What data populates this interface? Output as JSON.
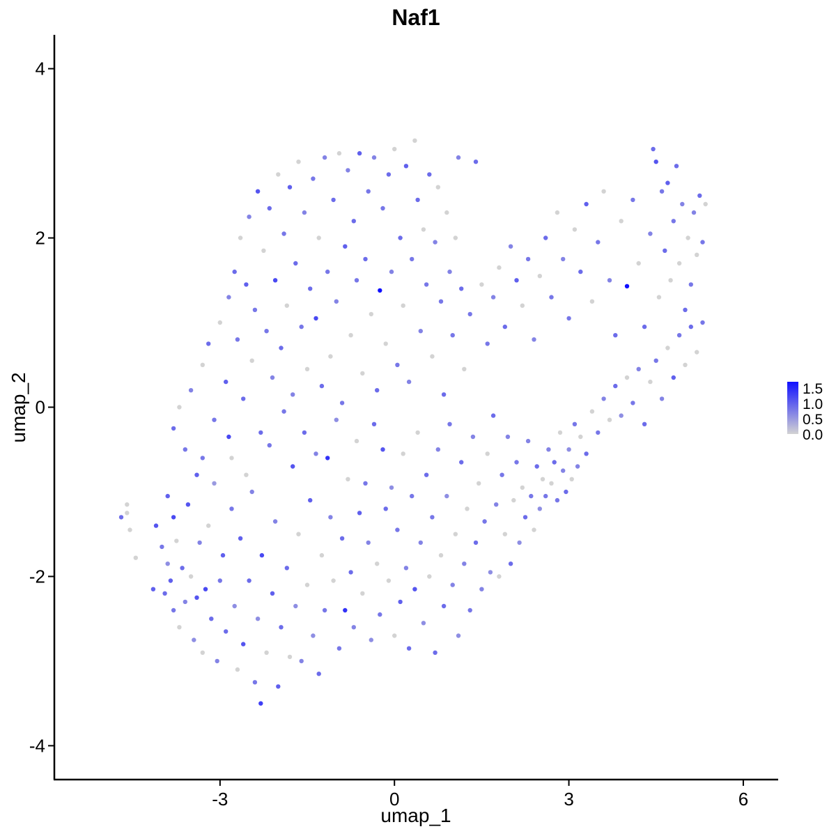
{
  "chart_data": {
    "type": "scatter",
    "title": "Naf1",
    "xlabel": "umap_1",
    "ylabel": "umap_2",
    "xlim": [
      -5.85,
      6.6
    ],
    "ylim": [
      -4.4,
      4.4
    ],
    "x_ticks": [
      "-3",
      "0",
      "3",
      "6"
    ],
    "x_tick_values": [
      -3,
      0,
      3,
      6
    ],
    "y_ticks": [
      "-4",
      "-2",
      "0",
      "2",
      "4"
    ],
    "y_tick_values": [
      -4,
      -2,
      0,
      2,
      4
    ],
    "grid": false,
    "legend": {
      "placement": "right",
      "labels": [
        "1.5",
        "1.0",
        "0.5",
        "0.0"
      ],
      "values": [
        1.5,
        1.0,
        0.5,
        0.0
      ],
      "range": [
        0,
        1.7
      ]
    },
    "color_scale": {
      "low": "#d3d3d3",
      "high": "#1010ff"
    },
    "points": [
      [
        -4.7,
        -1.3,
        0.9
      ],
      [
        -4.6,
        -1.25,
        0
      ],
      [
        -4.6,
        -1.15,
        0
      ],
      [
        -4.55,
        -1.45,
        0
      ],
      [
        -4.45,
        -1.78,
        0
      ],
      [
        -4.15,
        -2.15,
        1.0
      ],
      [
        -4.1,
        -1.4,
        1.1
      ],
      [
        -4.0,
        -1.65,
        0.8
      ],
      [
        -3.95,
        -2.2,
        0.9
      ],
      [
        -3.9,
        -1.85,
        0.6
      ],
      [
        -3.85,
        -2.05,
        1.0
      ],
      [
        -3.8,
        -2.4,
        0.8
      ],
      [
        -3.8,
        -1.3,
        1.2
      ],
      [
        -3.75,
        -1.58,
        0
      ],
      [
        -3.7,
        -2.6,
        0
      ],
      [
        -3.65,
        -1.9,
        0.9
      ],
      [
        -3.6,
        -2.3,
        0.7
      ],
      [
        -3.55,
        -1.15,
        1.1
      ],
      [
        -3.5,
        -2.0,
        0
      ],
      [
        -3.45,
        -2.75,
        0.6
      ],
      [
        -3.4,
        -2.25,
        1.1
      ],
      [
        -3.35,
        -1.6,
        0.7
      ],
      [
        -3.3,
        -2.9,
        0
      ],
      [
        -3.3,
        -0.6,
        0.8
      ],
      [
        -3.25,
        -2.15,
        1.2
      ],
      [
        -3.2,
        -1.4,
        0
      ],
      [
        -3.15,
        -2.5,
        0.9
      ],
      [
        -3.1,
        -0.9,
        0.5
      ],
      [
        -3.05,
        -3.0,
        0.7
      ],
      [
        -3.0,
        -2.05,
        0.8
      ],
      [
        -2.95,
        -1.75,
        1.0
      ],
      [
        -2.9,
        -2.65,
        0.9
      ],
      [
        -2.85,
        -0.35,
        1.2
      ],
      [
        -2.8,
        -1.2,
        0.8
      ],
      [
        -2.75,
        -2.35,
        0.6
      ],
      [
        -2.7,
        -3.1,
        0
      ],
      [
        -2.65,
        -1.55,
        1.0
      ],
      [
        -2.6,
        -2.8,
        1.1
      ],
      [
        -2.55,
        -0.8,
        0
      ],
      [
        -2.5,
        -2.05,
        0.9
      ],
      [
        -2.45,
        -1.0,
        0.7
      ],
      [
        -2.4,
        -3.25,
        0.8
      ],
      [
        -2.35,
        -2.5,
        0.6
      ],
      [
        -2.3,
        -3.5,
        1.3
      ],
      [
        -2.28,
        -1.75,
        1.2
      ],
      [
        -2.2,
        -2.9,
        0
      ],
      [
        -2.15,
        -0.45,
        0.8
      ],
      [
        -2.1,
        -2.2,
        1.0
      ],
      [
        -2.05,
        -1.35,
        0.7
      ],
      [
        -2.0,
        -3.3,
        1.0
      ],
      [
        -1.95,
        -2.6,
        0.9
      ],
      [
        -1.9,
        -0.05,
        0.8
      ],
      [
        -1.85,
        -1.9,
        0.9
      ],
      [
        -1.8,
        -2.95,
        0
      ],
      [
        -1.75,
        -0.7,
        1.1
      ],
      [
        -1.7,
        -2.35,
        0.6
      ],
      [
        -1.65,
        -1.5,
        0
      ],
      [
        -1.6,
        -3.0,
        0.7
      ],
      [
        -1.55,
        -0.3,
        0.9
      ],
      [
        -1.5,
        -2.1,
        0
      ],
      [
        -1.45,
        -1.1,
        1.0
      ],
      [
        -1.4,
        -2.7,
        0.6
      ],
      [
        -1.35,
        -0.55,
        0.7
      ],
      [
        -1.3,
        -3.15,
        0.9
      ],
      [
        -1.25,
        -1.75,
        0
      ],
      [
        -1.2,
        -2.4,
        0.8
      ],
      [
        -1.15,
        -0.6,
        1.4
      ],
      [
        -1.1,
        -1.3,
        0.7
      ],
      [
        -1.05,
        -2.05,
        0
      ],
      [
        -1.0,
        -0.15,
        0.6
      ],
      [
        -0.95,
        -2.85,
        0.8
      ],
      [
        -0.9,
        -1.55,
        0.9
      ],
      [
        -0.85,
        -2.4,
        1.4
      ],
      [
        -0.8,
        -0.85,
        0
      ],
      [
        -0.75,
        -1.95,
        0.9
      ],
      [
        -0.7,
        -2.6,
        0.7
      ],
      [
        -0.65,
        -0.4,
        0
      ],
      [
        -0.6,
        -1.25,
        1.0
      ],
      [
        -0.55,
        -2.2,
        0
      ],
      [
        -0.5,
        -0.9,
        0.8
      ],
      [
        -0.45,
        -1.6,
        0.7
      ],
      [
        -0.4,
        -2.75,
        0.6
      ],
      [
        -0.35,
        -0.2,
        0.9
      ],
      [
        -0.3,
        -1.85,
        0
      ],
      [
        -0.25,
        -2.45,
        0.8
      ],
      [
        -0.2,
        -0.5,
        1.1
      ],
      [
        -0.15,
        -1.2,
        0.9
      ],
      [
        -0.1,
        -2.05,
        0
      ],
      [
        -0.05,
        -0.95,
        0.6
      ],
      [
        0.0,
        -2.7,
        0
      ],
      [
        0.05,
        -1.45,
        0.8
      ],
      [
        0.1,
        -2.3,
        1.0
      ],
      [
        0.15,
        -0.55,
        0
      ],
      [
        0.2,
        -1.9,
        0.7
      ],
      [
        0.25,
        -2.85,
        0.9
      ],
      [
        0.3,
        -1.05,
        0.8
      ],
      [
        0.35,
        -2.15,
        1.1
      ],
      [
        0.4,
        -0.3,
        0
      ],
      [
        0.45,
        -1.6,
        0.7
      ],
      [
        0.5,
        -2.55,
        0.6
      ],
      [
        0.55,
        -0.8,
        0.9
      ],
      [
        0.6,
        -2.0,
        0
      ],
      [
        0.65,
        -1.3,
        0.8
      ],
      [
        0.7,
        -2.9,
        0.9
      ],
      [
        0.75,
        -0.5,
        0.7
      ],
      [
        0.8,
        -1.75,
        0
      ],
      [
        0.85,
        -2.35,
        0.9
      ],
      [
        0.9,
        -1.05,
        0.6
      ],
      [
        0.95,
        -0.2,
        0.8
      ],
      [
        1.0,
        -2.1,
        0.7
      ],
      [
        1.05,
        -1.5,
        0
      ],
      [
        1.1,
        -2.7,
        0.6
      ],
      [
        1.15,
        -0.65,
        0.9
      ],
      [
        1.2,
        -1.85,
        0.7
      ],
      [
        1.25,
        -1.2,
        0
      ],
      [
        1.3,
        -2.4,
        0.8
      ],
      [
        1.35,
        -0.35,
        0.7
      ],
      [
        1.4,
        -1.6,
        0.9
      ],
      [
        1.45,
        -0.9,
        0
      ],
      [
        1.5,
        -2.15,
        0.7
      ],
      [
        1.55,
        -1.35,
        0.8
      ],
      [
        1.6,
        -0.55,
        0
      ],
      [
        1.65,
        -1.95,
        0.6
      ],
      [
        1.7,
        -0.1,
        0.9
      ],
      [
        1.75,
        -1.15,
        0.7
      ],
      [
        1.8,
        -2.0,
        0
      ],
      [
        1.85,
        -0.8,
        0.8
      ],
      [
        1.9,
        -1.5,
        0
      ],
      [
        1.95,
        -0.35,
        0.7
      ],
      [
        2.0,
        -1.85,
        0.9
      ],
      [
        2.05,
        -1.1,
        0
      ],
      [
        2.1,
        -0.65,
        0.8
      ],
      [
        2.15,
        -1.6,
        0.6
      ],
      [
        2.2,
        -0.95,
        0
      ],
      [
        2.25,
        -1.3,
        0.9
      ],
      [
        2.3,
        -0.4,
        0.7
      ],
      [
        2.35,
        -1.05,
        0.8
      ],
      [
        2.4,
        -1.45,
        0
      ],
      [
        2.45,
        -0.7,
        0.9
      ],
      [
        2.5,
        -1.2,
        0.6
      ],
      [
        2.55,
        -0.85,
        0
      ],
      [
        2.6,
        -1.05,
        0.8
      ],
      [
        2.65,
        -0.5,
        0.7
      ],
      [
        2.7,
        -0.9,
        0
      ],
      [
        2.75,
        -0.65,
        0.9
      ],
      [
        2.8,
        -1.1,
        0.8
      ],
      [
        2.85,
        -0.3,
        0
      ],
      [
        2.9,
        -0.75,
        0.7
      ],
      [
        2.95,
        -1.0,
        0.9
      ],
      [
        3.0,
        -0.5,
        0.6
      ],
      [
        3.05,
        -0.85,
        0
      ],
      [
        3.1,
        -0.2,
        0.8
      ],
      [
        3.15,
        -0.7,
        0.7
      ],
      [
        3.2,
        -0.35,
        0
      ],
      [
        3.3,
        -0.55,
        0.9
      ],
      [
        3.4,
        -0.05,
        0
      ],
      [
        3.5,
        -0.3,
        0.8
      ],
      [
        3.6,
        0.1,
        0.7
      ],
      [
        3.7,
        -0.15,
        0
      ],
      [
        3.8,
        0.25,
        0.9
      ],
      [
        3.9,
        -0.1,
        0.6
      ],
      [
        4.0,
        0.35,
        0
      ],
      [
        4.1,
        0.05,
        0.8
      ],
      [
        4.2,
        0.45,
        0.7
      ],
      [
        4.3,
        -0.2,
        0.9
      ],
      [
        4.4,
        0.3,
        0
      ],
      [
        4.5,
        0.55,
        0.8
      ],
      [
        4.6,
        0.1,
        0.7
      ],
      [
        4.7,
        0.7,
        0
      ],
      [
        4.8,
        0.35,
        1.0
      ],
      [
        4.9,
        0.85,
        0.8
      ],
      [
        5.0,
        0.5,
        0
      ],
      [
        5.1,
        0.95,
        0.9
      ],
      [
        5.2,
        0.65,
        0
      ],
      [
        5.3,
        1.0,
        0.8
      ],
      [
        -3.9,
        -1.05,
        1.0
      ],
      [
        -3.8,
        -0.25,
        0.9
      ],
      [
        -3.7,
        0.0,
        0
      ],
      [
        -3.6,
        -0.5,
        0.8
      ],
      [
        -3.5,
        0.2,
        0.7
      ],
      [
        -3.4,
        -0.8,
        1.0
      ],
      [
        -3.3,
        0.5,
        0
      ],
      [
        -3.2,
        0.75,
        0.9
      ],
      [
        -3.1,
        -0.15,
        0.8
      ],
      [
        -3.0,
        1.0,
        0
      ],
      [
        -2.9,
        0.3,
        1.0
      ],
      [
        -2.85,
        1.3,
        0.7
      ],
      [
        -2.8,
        -0.6,
        0
      ],
      [
        -2.75,
        1.6,
        0.9
      ],
      [
        -2.7,
        0.8,
        0.8
      ],
      [
        -2.65,
        2.0,
        0
      ],
      [
        -2.6,
        0.1,
        0.9
      ],
      [
        -2.55,
        1.45,
        1.0
      ],
      [
        -2.5,
        2.25,
        0.7
      ],
      [
        -2.45,
        0.55,
        0
      ],
      [
        -2.4,
        1.15,
        0.8
      ],
      [
        -2.35,
        2.55,
        1.1
      ],
      [
        -2.3,
        -0.3,
        0.9
      ],
      [
        -2.25,
        1.85,
        0
      ],
      [
        -2.2,
        0.9,
        0.8
      ],
      [
        -2.15,
        2.35,
        0.9
      ],
      [
        -2.1,
        0.35,
        0.7
      ],
      [
        -2.05,
        1.5,
        1.2
      ],
      [
        -2.0,
        2.75,
        0
      ],
      [
        -1.95,
        0.7,
        0.9
      ],
      [
        -1.9,
        2.05,
        0.8
      ],
      [
        -1.85,
        1.2,
        0
      ],
      [
        -1.8,
        2.6,
        1.0
      ],
      [
        -1.75,
        0.15,
        0.7
      ],
      [
        -1.7,
        1.7,
        0.9
      ],
      [
        -1.65,
        2.9,
        0
      ],
      [
        -1.6,
        0.95,
        0.8
      ],
      [
        -1.55,
        2.3,
        0.7
      ],
      [
        -1.5,
        0.45,
        0
      ],
      [
        -1.45,
        1.4,
        0.9
      ],
      [
        -1.4,
        2.7,
        0.8
      ],
      [
        -1.35,
        1.05,
        1.2
      ],
      [
        -1.3,
        2.0,
        0
      ],
      [
        -1.25,
        0.25,
        0.9
      ],
      [
        -1.2,
        2.95,
        0.7
      ],
      [
        -1.15,
        1.6,
        0.8
      ],
      [
        -1.1,
        0.6,
        0
      ],
      [
        -1.05,
        2.45,
        0.9
      ],
      [
        -1.0,
        1.25,
        0.7
      ],
      [
        -0.95,
        3.0,
        0
      ],
      [
        -0.9,
        0.05,
        0.8
      ],
      [
        -0.85,
        1.9,
        1.0
      ],
      [
        -0.8,
        2.8,
        0.7
      ],
      [
        -0.75,
        0.85,
        0
      ],
      [
        -0.7,
        2.2,
        0.9
      ],
      [
        -0.65,
        1.5,
        0.8
      ],
      [
        -0.6,
        3.0,
        1.0
      ],
      [
        -0.55,
        0.4,
        0
      ],
      [
        -0.5,
        1.75,
        0.9
      ],
      [
        -0.45,
        2.55,
        0.8
      ],
      [
        -0.4,
        1.1,
        0
      ],
      [
        -0.35,
        2.95,
        0.7
      ],
      [
        -0.3,
        0.2,
        0.9
      ],
      [
        -0.25,
        1.38,
        1.7
      ],
      [
        -0.2,
        2.35,
        0.8
      ],
      [
        -0.15,
        0.75,
        0
      ],
      [
        -0.1,
        2.75,
        0.9
      ],
      [
        -0.05,
        1.6,
        0.7
      ],
      [
        0.0,
        3.05,
        0
      ],
      [
        0.05,
        0.5,
        0.8
      ],
      [
        0.1,
        2.0,
        0.9
      ],
      [
        0.15,
        1.2,
        0
      ],
      [
        0.2,
        2.85,
        1.0
      ],
      [
        0.25,
        0.3,
        0.7
      ],
      [
        0.3,
        1.75,
        0.8
      ],
      [
        0.35,
        3.15,
        0
      ],
      [
        0.4,
        2.45,
        0.9
      ],
      [
        0.45,
        0.9,
        0.7
      ],
      [
        0.5,
        2.1,
        0
      ],
      [
        0.55,
        1.45,
        0.8
      ],
      [
        0.6,
        2.75,
        0.9
      ],
      [
        0.65,
        0.6,
        0
      ],
      [
        0.7,
        1.95,
        0.7
      ],
      [
        0.75,
        2.6,
        0
      ],
      [
        0.8,
        1.25,
        0.8
      ],
      [
        0.85,
        0.15,
        0.9
      ],
      [
        0.9,
        2.3,
        0
      ],
      [
        0.95,
        1.6,
        0.7
      ],
      [
        1.0,
        0.85,
        0.8
      ],
      [
        1.05,
        2.0,
        0
      ],
      [
        1.1,
        2.95,
        0.7
      ],
      [
        1.15,
        1.4,
        0.9
      ],
      [
        1.2,
        0.45,
        0
      ],
      [
        1.3,
        1.1,
        0.8
      ],
      [
        1.4,
        2.9,
        0.9
      ],
      [
        1.5,
        1.45,
        0
      ],
      [
        1.6,
        0.75,
        0.8
      ],
      [
        1.7,
        1.3,
        0.7
      ],
      [
        1.8,
        1.65,
        0
      ],
      [
        1.9,
        0.95,
        0.9
      ],
      [
        2.0,
        1.9,
        0.7
      ],
      [
        2.1,
        1.5,
        1.0
      ],
      [
        2.2,
        1.2,
        0
      ],
      [
        2.3,
        1.75,
        0.8
      ],
      [
        2.4,
        0.8,
        0.7
      ],
      [
        2.5,
        1.55,
        0
      ],
      [
        2.6,
        2.0,
        0.9
      ],
      [
        2.7,
        1.3,
        0.8
      ],
      [
        2.8,
        2.3,
        0
      ],
      [
        2.9,
        1.75,
        0.7
      ],
      [
        3.0,
        1.05,
        0.8
      ],
      [
        3.1,
        2.1,
        0
      ],
      [
        3.2,
        1.6,
        0.9
      ],
      [
        3.3,
        2.4,
        1.0
      ],
      [
        3.4,
        1.25,
        0
      ],
      [
        3.5,
        1.95,
        0.8
      ],
      [
        3.6,
        2.55,
        0
      ],
      [
        3.7,
        1.5,
        0.7
      ],
      [
        3.8,
        0.85,
        0.9
      ],
      [
        3.9,
        2.2,
        0
      ],
      [
        4.0,
        1.43,
        1.7
      ],
      [
        4.1,
        2.45,
        0.8
      ],
      [
        4.2,
        1.7,
        0
      ],
      [
        4.3,
        0.95,
        0.9
      ],
      [
        4.4,
        2.05,
        0.7
      ],
      [
        4.45,
        3.05,
        0.9
      ],
      [
        4.5,
        2.9,
        1.1
      ],
      [
        4.55,
        1.3,
        0
      ],
      [
        4.6,
        2.55,
        0.8
      ],
      [
        4.65,
        1.85,
        0.9
      ],
      [
        4.7,
        2.65,
        1.0
      ],
      [
        4.75,
        1.5,
        0
      ],
      [
        4.8,
        2.2,
        0.8
      ],
      [
        4.85,
        2.85,
        0.9
      ],
      [
        4.9,
        1.7,
        0
      ],
      [
        4.95,
        2.4,
        0.7
      ],
      [
        5.0,
        1.15,
        0.9
      ],
      [
        5.05,
        2.0,
        0
      ],
      [
        5.1,
        1.45,
        0.8
      ],
      [
        5.15,
        2.3,
        0.7
      ],
      [
        5.2,
        1.8,
        0
      ],
      [
        5.25,
        2.5,
        0.9
      ],
      [
        5.3,
        1.95,
        0.8
      ],
      [
        5.35,
        2.4,
        0
      ]
    ]
  }
}
